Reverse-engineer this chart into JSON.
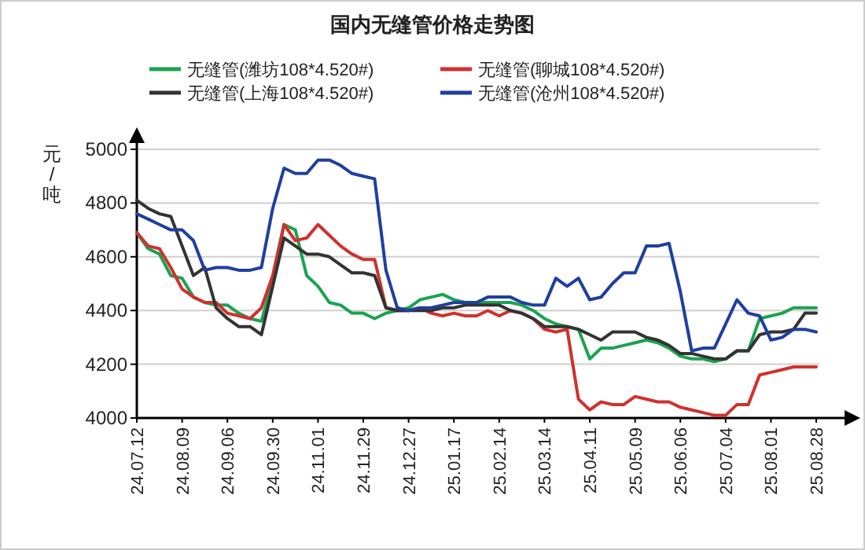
{
  "chart_data": {
    "type": "line",
    "title": "国内无缝管价格走势图",
    "ylabel": "元/吨",
    "categories": [
      "24.07.12",
      null,
      null,
      null,
      "24.08.09",
      null,
      null,
      null,
      "24.09.06",
      null,
      null,
      null,
      "24.09.30",
      null,
      null,
      null,
      "24.11.01",
      null,
      null,
      null,
      "24.11.29",
      null,
      null,
      null,
      "24.12.27",
      null,
      null,
      null,
      "25.01.17",
      null,
      null,
      null,
      "25.02.14",
      null,
      null,
      null,
      "25.03.14",
      null,
      null,
      null,
      "25.04.11",
      null,
      null,
      null,
      "25.05.09",
      null,
      null,
      null,
      "25.06.06",
      null,
      null,
      null,
      "25.07.04",
      null,
      null,
      null,
      "25.08.01",
      null,
      null,
      null,
      "25.08.28"
    ],
    "series": [
      {
        "name": "无缝管(潍坊108*4.520#)",
        "color": "#1aa350",
        "values": [
          4690,
          4630,
          4610,
          4530,
          4520,
          4450,
          4430,
          4420,
          4420,
          4390,
          4370,
          4360,
          4510,
          4720,
          4700,
          4530,
          4490,
          4430,
          4420,
          4390,
          4390,
          4370,
          4390,
          4400,
          4410,
          4440,
          4450,
          4460,
          4440,
          4430,
          4430,
          4430,
          4430,
          4430,
          4420,
          4400,
          4370,
          4350,
          4340,
          4330,
          4220,
          4260,
          4260,
          4270,
          4280,
          4290,
          4280,
          4260,
          4230,
          4220,
          4220,
          4210,
          4220,
          4250,
          4250,
          4370,
          4380,
          4390,
          4410,
          4410,
          4410
        ]
      },
      {
        "name": "无缝管(聊城108*4.520#)",
        "color": "#d0312d",
        "values": [
          4690,
          4640,
          4630,
          4560,
          4480,
          4450,
          4430,
          4430,
          4390,
          4380,
          4370,
          4410,
          4530,
          4720,
          4660,
          4670,
          4720,
          4680,
          4640,
          4610,
          4590,
          4590,
          4410,
          4400,
          4400,
          4410,
          4390,
          4380,
          4390,
          4380,
          4380,
          4400,
          4380,
          4400,
          4390,
          4370,
          4330,
          4320,
          4330,
          4070,
          4030,
          4060,
          4050,
          4050,
          4080,
          4070,
          4060,
          4060,
          4040,
          4030,
          4020,
          4010,
          4010,
          4050,
          4050,
          4160,
          4170,
          4180,
          4190,
          4190,
          4190
        ]
      },
      {
        "name": "无缝管(上海108*4.520#)",
        "color": "#333333",
        "values": [
          4810,
          4780,
          4760,
          4750,
          4640,
          4530,
          4560,
          4410,
          4370,
          4340,
          4340,
          4310,
          4490,
          4670,
          4640,
          4610,
          4610,
          4600,
          4570,
          4540,
          4540,
          4530,
          4410,
          4400,
          4400,
          4400,
          4400,
          4410,
          4410,
          4420,
          4420,
          4420,
          4420,
          4400,
          4390,
          4370,
          4340,
          4340,
          4340,
          4330,
          4310,
          4290,
          4320,
          4320,
          4320,
          4300,
          4290,
          4270,
          4240,
          4240,
          4230,
          4220,
          4220,
          4250,
          4250,
          4310,
          4320,
          4320,
          4330,
          4390,
          4390
        ]
      },
      {
        "name": "无缝管(沧州108*4.520#)",
        "color": "#1f3f9f",
        "values": [
          4760,
          4740,
          4720,
          4700,
          4700,
          4660,
          4550,
          4560,
          4560,
          4550,
          4550,
          4560,
          4780,
          4930,
          4910,
          4910,
          4960,
          4960,
          4940,
          4910,
          4900,
          4890,
          4550,
          4410,
          4400,
          4410,
          4410,
          4420,
          4430,
          4430,
          4430,
          4450,
          4450,
          4450,
          4430,
          4420,
          4420,
          4520,
          4490,
          4520,
          4440,
          4450,
          4500,
          4540,
          4540,
          4640,
          4640,
          4650,
          4470,
          4250,
          4260,
          4260,
          4350,
          4440,
          4390,
          4380,
          4290,
          4300,
          4330,
          4330,
          4320
        ]
      }
    ],
    "ylim": [
      4000,
      5000
    ],
    "yticks": [
      4000,
      4200,
      4400,
      4600,
      4800,
      5000
    ],
    "grid": "y",
    "legend": "top",
    "marker": "none",
    "line_style": "solid"
  }
}
